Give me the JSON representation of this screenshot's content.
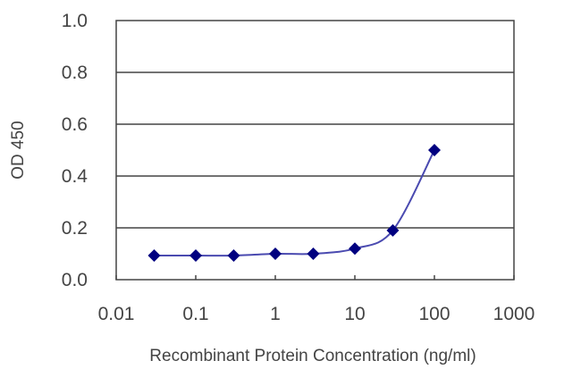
{
  "chart_data": {
    "type": "line",
    "title": "",
    "xlabel": "Recombinant Protein Concentration (ng/ml)",
    "ylabel": "OD 450",
    "xscale": "log",
    "xlim": [
      0.01,
      1000
    ],
    "ylim": [
      0.0,
      1.0
    ],
    "x_ticks": [
      "0.01",
      "0.1",
      "1",
      "10",
      "100",
      "1000"
    ],
    "y_ticks": [
      "0.0",
      "0.2",
      "0.4",
      "0.6",
      "0.8",
      "1.0"
    ],
    "grid": "horizontal",
    "legend": null,
    "series": [
      {
        "name": "OD 450",
        "color": "#000080",
        "marker": "diamond",
        "x": [
          0.03,
          0.1,
          0.3,
          1,
          3,
          10,
          30,
          100
        ],
        "y": [
          0.093,
          0.093,
          0.093,
          0.1,
          0.1,
          0.12,
          0.19,
          0.5
        ]
      }
    ]
  }
}
